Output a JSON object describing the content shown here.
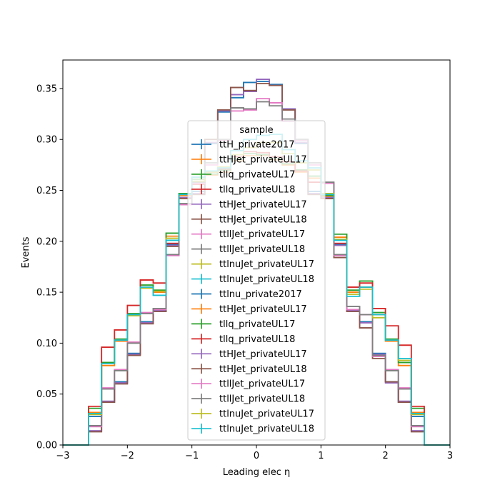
{
  "chart_data": {
    "type": "histogram-step",
    "xlabel": "Leading elec η",
    "ylabel": "Events",
    "xlim": [
      -3,
      3
    ],
    "ylim": [
      0,
      0.378
    ],
    "xticks": [
      -3,
      -2,
      -1,
      0,
      1,
      2,
      3
    ],
    "xtick_labels": [
      "−3",
      "−2",
      "−1",
      "0",
      "1",
      "2",
      "3"
    ],
    "yticks": [
      0.0,
      0.05,
      0.1,
      0.15,
      0.2,
      0.25,
      0.3,
      0.35
    ],
    "ytick_labels": [
      "0.00",
      "0.05",
      "0.10",
      "0.15",
      "0.20",
      "0.25",
      "0.30",
      "0.35"
    ],
    "bin_edges": [
      -3.0,
      -2.8,
      -2.6,
      -2.4,
      -2.2,
      -2.0,
      -1.8,
      -1.6,
      -1.4,
      -1.2,
      -1.0,
      -0.8,
      -0.6,
      -0.4,
      -0.2,
      0.0,
      0.2,
      0.4,
      0.6,
      0.8,
      1.0,
      1.2,
      1.4,
      1.6,
      1.8,
      2.0,
      2.2,
      2.4,
      2.6,
      2.8,
      3.0
    ],
    "legend": {
      "title": "sample",
      "location": "center"
    },
    "series": [
      {
        "name": "ttH_private2017",
        "color": "#1f77b4",
        "values": [
          0,
          0,
          0.028,
          0.042,
          0.062,
          0.09,
          0.121,
          0.133,
          0.197,
          0.245,
          0.249,
          0.296,
          0.327,
          0.341,
          0.356,
          0.357,
          0.354,
          0.33,
          0.296,
          0.249,
          0.245,
          0.197,
          0.133,
          0.121,
          0.09,
          0.062,
          0.042,
          0.028,
          0,
          0
        ]
      },
      {
        "name": "ttHJet_privateUL17",
        "color": "#ff7f0e",
        "values": [
          0,
          0,
          0.032,
          0.078,
          0.102,
          0.128,
          0.155,
          0.15,
          0.205,
          0.245,
          0.258,
          0.265,
          0.268,
          0.279,
          0.284,
          0.284,
          0.28,
          0.275,
          0.268,
          0.262,
          0.244,
          0.204,
          0.15,
          0.155,
          0.128,
          0.102,
          0.078,
          0.032,
          0,
          0
        ]
      },
      {
        "name": "tllq_privateUL17",
        "color": "#2ca02c",
        "values": [
          0,
          0,
          0.036,
          0.081,
          0.104,
          0.129,
          0.157,
          0.152,
          0.208,
          0.247,
          0.261,
          0.266,
          0.27,
          0.281,
          0.286,
          0.285,
          0.281,
          0.276,
          0.27,
          0.264,
          0.245,
          0.207,
          0.152,
          0.161,
          0.13,
          0.104,
          0.081,
          0.036,
          0,
          0
        ]
      },
      {
        "name": "tllq_privateUL18",
        "color": "#d62728",
        "values": [
          0,
          0,
          0.038,
          0.096,
          0.113,
          0.137,
          0.162,
          0.159,
          0.198,
          0.243,
          0.256,
          0.268,
          0.271,
          0.283,
          0.288,
          0.287,
          0.283,
          0.278,
          0.269,
          0.258,
          0.242,
          0.198,
          0.155,
          0.159,
          0.134,
          0.117,
          0.098,
          0.038,
          0,
          0
        ]
      },
      {
        "name": "ttHJet_privateUL17",
        "color": "#9467bd",
        "values": [
          0,
          0,
          0.014,
          0.043,
          0.061,
          0.089,
          0.12,
          0.132,
          0.196,
          0.243,
          0.247,
          0.297,
          0.328,
          0.344,
          0.347,
          0.359,
          0.353,
          0.33,
          0.297,
          0.247,
          0.243,
          0.196,
          0.132,
          0.12,
          0.089,
          0.061,
          0.043,
          0.014,
          0,
          0
        ]
      },
      {
        "name": "ttHJet_privateUL18",
        "color": "#8c564b",
        "values": [
          0,
          0,
          0.013,
          0.042,
          0.06,
          0.088,
          0.119,
          0.131,
          0.195,
          0.242,
          0.246,
          0.3,
          0.329,
          0.351,
          0.348,
          0.355,
          0.353,
          0.329,
          0.3,
          0.246,
          0.242,
          0.184,
          0.131,
          0.115,
          0.085,
          0.062,
          0.042,
          0.013,
          0,
          0
        ]
      },
      {
        "name": "ttllJet_privateUL17",
        "color": "#e377c2",
        "values": [
          0,
          0,
          0.018,
          0.056,
          0.074,
          0.101,
          0.13,
          0.133,
          0.186,
          0.236,
          0.257,
          0.275,
          0.299,
          0.328,
          0.329,
          0.34,
          0.336,
          0.318,
          0.299,
          0.275,
          0.257,
          0.186,
          0.133,
          0.128,
          0.087,
          0.074,
          0.056,
          0.018,
          0,
          0
        ]
      },
      {
        "name": "ttllJet_privateUL18",
        "color": "#7f7f7f",
        "values": [
          0,
          0,
          0.019,
          0.055,
          0.073,
          0.1,
          0.129,
          0.134,
          0.187,
          0.237,
          0.258,
          0.277,
          0.3,
          0.331,
          0.33,
          0.337,
          0.333,
          0.32,
          0.3,
          0.277,
          0.258,
          0.187,
          0.136,
          0.128,
          0.088,
          0.073,
          0.055,
          0.019,
          0,
          0
        ]
      },
      {
        "name": "ttlnuJet_privateUL17",
        "color": "#bcbd22",
        "values": [
          0,
          0,
          0.03,
          0.08,
          0.103,
          0.127,
          0.154,
          0.151,
          0.203,
          0.246,
          0.259,
          0.268,
          0.273,
          0.285,
          0.292,
          0.297,
          0.297,
          0.286,
          0.277,
          0.27,
          0.247,
          0.202,
          0.148,
          0.153,
          0.125,
          0.103,
          0.083,
          0.03,
          0,
          0
        ]
      },
      {
        "name": "ttlnuJet_privateUL18",
        "color": "#17becf",
        "values": [
          0,
          0,
          0.031,
          0.08,
          0.103,
          0.128,
          0.155,
          0.147,
          0.201,
          0.246,
          0.263,
          0.269,
          0.272,
          0.289,
          0.3,
          0.304,
          0.305,
          0.29,
          0.279,
          0.272,
          0.246,
          0.201,
          0.146,
          0.155,
          0.128,
          0.103,
          0.085,
          0.031,
          0,
          0
        ]
      },
      {
        "name": "ttlnu_private2017",
        "color": "#1f77b4",
        "values": [
          0,
          0,
          0.028,
          0.042,
          0.062,
          0.09,
          0.121,
          0.133,
          0.197,
          0.245,
          0.249,
          0.296,
          0.327,
          0.341,
          0.356,
          0.357,
          0.354,
          0.33,
          0.296,
          0.249,
          0.245,
          0.197,
          0.133,
          0.121,
          0.09,
          0.062,
          0.042,
          0.028,
          0,
          0
        ]
      },
      {
        "name": "ttHJet_privateUL17",
        "color": "#ff7f0e",
        "values": [
          0,
          0,
          0.032,
          0.078,
          0.102,
          0.128,
          0.155,
          0.15,
          0.205,
          0.245,
          0.258,
          0.265,
          0.268,
          0.279,
          0.284,
          0.284,
          0.28,
          0.275,
          0.268,
          0.262,
          0.244,
          0.204,
          0.15,
          0.155,
          0.128,
          0.102,
          0.078,
          0.032,
          0,
          0
        ]
      },
      {
        "name": "tllq_privateUL17",
        "color": "#2ca02c",
        "values": [
          0,
          0,
          0.036,
          0.081,
          0.104,
          0.129,
          0.157,
          0.152,
          0.208,
          0.247,
          0.261,
          0.266,
          0.27,
          0.281,
          0.286,
          0.285,
          0.281,
          0.276,
          0.27,
          0.264,
          0.245,
          0.207,
          0.152,
          0.161,
          0.13,
          0.104,
          0.081,
          0.036,
          0,
          0
        ]
      },
      {
        "name": "tllq_privateUL18",
        "color": "#d62728",
        "values": [
          0,
          0,
          0.038,
          0.096,
          0.113,
          0.137,
          0.162,
          0.159,
          0.198,
          0.243,
          0.256,
          0.268,
          0.271,
          0.283,
          0.288,
          0.287,
          0.283,
          0.278,
          0.269,
          0.258,
          0.242,
          0.198,
          0.155,
          0.159,
          0.134,
          0.117,
          0.098,
          0.038,
          0,
          0
        ]
      },
      {
        "name": "ttHJet_privateUL17",
        "color": "#9467bd",
        "values": [
          0,
          0,
          0.014,
          0.043,
          0.061,
          0.089,
          0.12,
          0.132,
          0.196,
          0.243,
          0.247,
          0.297,
          0.328,
          0.344,
          0.347,
          0.359,
          0.353,
          0.33,
          0.297,
          0.247,
          0.243,
          0.196,
          0.132,
          0.12,
          0.089,
          0.061,
          0.043,
          0.014,
          0,
          0
        ]
      },
      {
        "name": "ttHJet_privateUL18",
        "color": "#8c564b",
        "values": [
          0,
          0,
          0.013,
          0.042,
          0.06,
          0.088,
          0.119,
          0.131,
          0.195,
          0.242,
          0.246,
          0.3,
          0.329,
          0.351,
          0.348,
          0.355,
          0.353,
          0.329,
          0.3,
          0.246,
          0.242,
          0.184,
          0.131,
          0.115,
          0.085,
          0.062,
          0.042,
          0.013,
          0,
          0
        ]
      },
      {
        "name": "ttllJet_privateUL17",
        "color": "#e377c2",
        "values": [
          0,
          0,
          0.018,
          0.056,
          0.074,
          0.101,
          0.13,
          0.133,
          0.186,
          0.236,
          0.257,
          0.275,
          0.299,
          0.328,
          0.329,
          0.34,
          0.336,
          0.318,
          0.299,
          0.275,
          0.257,
          0.186,
          0.133,
          0.128,
          0.087,
          0.074,
          0.056,
          0.018,
          0,
          0
        ]
      },
      {
        "name": "ttllJet_privateUL18",
        "color": "#7f7f7f",
        "values": [
          0,
          0,
          0.019,
          0.055,
          0.073,
          0.1,
          0.129,
          0.134,
          0.187,
          0.237,
          0.258,
          0.277,
          0.3,
          0.331,
          0.33,
          0.337,
          0.333,
          0.32,
          0.3,
          0.277,
          0.258,
          0.187,
          0.136,
          0.128,
          0.088,
          0.073,
          0.055,
          0.019,
          0,
          0
        ]
      },
      {
        "name": "ttlnuJet_privateUL17",
        "color": "#bcbd22",
        "values": [
          0,
          0,
          0.03,
          0.08,
          0.103,
          0.127,
          0.154,
          0.151,
          0.203,
          0.246,
          0.259,
          0.268,
          0.273,
          0.285,
          0.292,
          0.297,
          0.297,
          0.286,
          0.277,
          0.27,
          0.247,
          0.202,
          0.148,
          0.153,
          0.125,
          0.103,
          0.083,
          0.03,
          0,
          0
        ]
      },
      {
        "name": "ttlnuJet_privateUL18",
        "color": "#17becf",
        "values": [
          0,
          0,
          0.031,
          0.08,
          0.103,
          0.128,
          0.155,
          0.147,
          0.201,
          0.246,
          0.263,
          0.269,
          0.272,
          0.289,
          0.3,
          0.304,
          0.305,
          0.29,
          0.279,
          0.272,
          0.246,
          0.201,
          0.146,
          0.155,
          0.128,
          0.103,
          0.085,
          0.031,
          0,
          0
        ]
      }
    ]
  }
}
